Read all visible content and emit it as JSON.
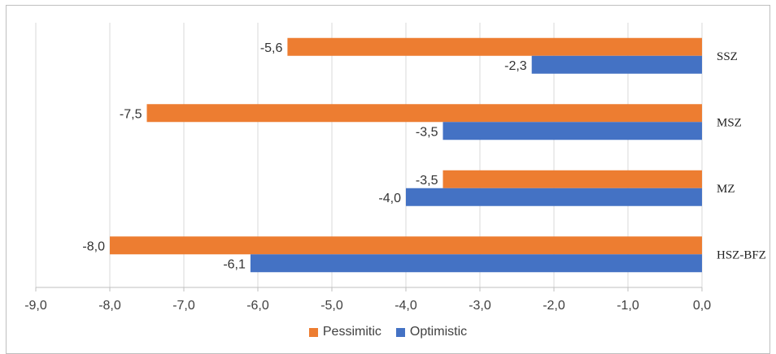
{
  "chart_data": {
    "type": "bar",
    "orientation": "horizontal",
    "categories": [
      "SSZ",
      "MSZ",
      "MZ",
      "HSZ-BFZ"
    ],
    "series": [
      {
        "name": "Pessimitic",
        "color": "#ED7D31",
        "values": [
          -5.6,
          -7.5,
          -3.5,
          -8.0
        ],
        "labels": [
          "-5,6",
          "-7,5",
          "-3,5",
          "-8,0"
        ]
      },
      {
        "name": "Optimistic",
        "color": "#4472C4",
        "values": [
          -2.3,
          -3.5,
          -4.0,
          -6.1
        ],
        "labels": [
          "-2,3",
          "-3,5",
          "-4,0",
          "-6,1"
        ]
      }
    ],
    "xlim": [
      -9,
      0
    ],
    "xticks": [
      -9,
      -8,
      -7,
      -6,
      -5,
      -4,
      -3,
      -2,
      -1,
      0
    ],
    "xtick_labels": [
      "-9,0",
      "-8,0",
      "-7,0",
      "-6,0",
      "-5,0",
      "-4,0",
      "-3,0",
      "-2,0",
      "-1,0",
      "0,0"
    ],
    "grid": true,
    "legend_position": "bottom"
  }
}
